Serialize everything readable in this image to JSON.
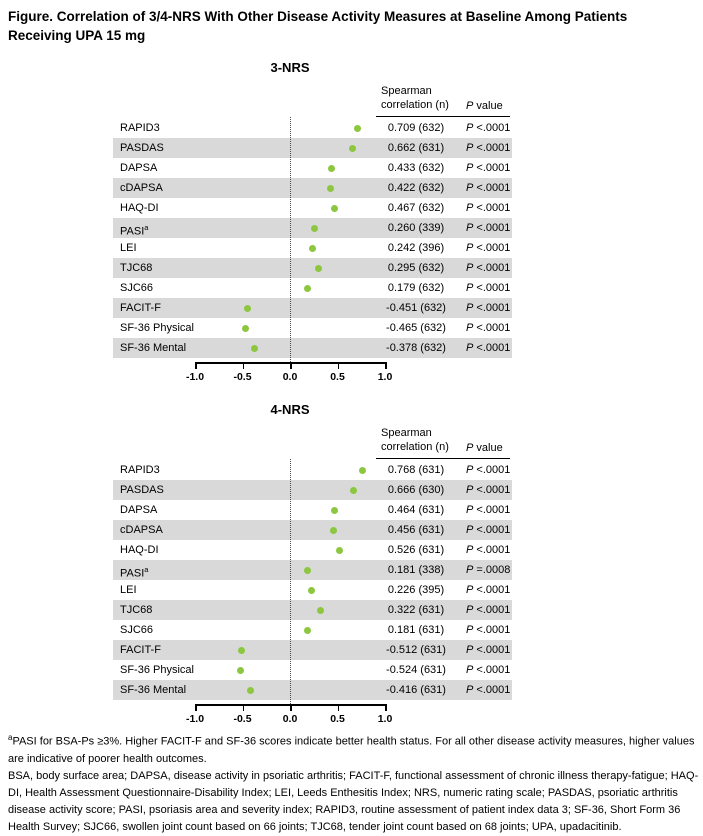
{
  "figure_title": "Figure. Correlation of 3/4-NRS With Other Disease Activity Measures at Baseline Among Patients\nReceiving UPA 15 mg",
  "table_header": {
    "col1": "Spearman\ncorrelation (n)",
    "p_symbol": "P",
    "p_word": "value"
  },
  "colors": {
    "dot": "#8DC63F",
    "band": "#D9D9D9"
  },
  "chart_data": [
    {
      "type": "scatter",
      "title": "3-NRS",
      "xlim": [
        -1,
        1
      ],
      "x_ticks": [
        {
          "label": "-1.0",
          "value": -1.0
        },
        {
          "label": "-0.5",
          "value": -0.5
        },
        {
          "label": "0.0",
          "value": 0.0
        },
        {
          "label": "0.5",
          "value": 0.5
        },
        {
          "label": "1.0",
          "value": 1.0
        }
      ],
      "rows": [
        {
          "label": "RAPID3",
          "sup": "",
          "value": 0.709,
          "n": 632,
          "p": "<.0001"
        },
        {
          "label": "PASDAS",
          "sup": "",
          "value": 0.662,
          "n": 631,
          "p": "<.0001"
        },
        {
          "label": "DAPSA",
          "sup": "",
          "value": 0.433,
          "n": 632,
          "p": "<.0001"
        },
        {
          "label": "cDAPSA",
          "sup": "",
          "value": 0.422,
          "n": 632,
          "p": "<.0001"
        },
        {
          "label": "HAQ-DI",
          "sup": "",
          "value": 0.467,
          "n": 632,
          "p": "<.0001"
        },
        {
          "label": "PASI",
          "sup": "a",
          "value": 0.26,
          "n": 339,
          "p": "<.0001"
        },
        {
          "label": "LEI",
          "sup": "",
          "value": 0.242,
          "n": 396,
          "p": "<.0001"
        },
        {
          "label": "TJC68",
          "sup": "",
          "value": 0.295,
          "n": 632,
          "p": "<.0001"
        },
        {
          "label": "SJC66",
          "sup": "",
          "value": 0.179,
          "n": 632,
          "p": "<.0001"
        },
        {
          "label": "FACIT-F",
          "sup": "",
          "value": -0.451,
          "n": 632,
          "p": "<.0001"
        },
        {
          "label": "SF-36 Physical",
          "sup": "",
          "value": -0.465,
          "n": 632,
          "p": "<.0001"
        },
        {
          "label": "SF-36 Mental",
          "sup": "",
          "value": -0.378,
          "n": 632,
          "p": "<.0001"
        }
      ]
    },
    {
      "type": "scatter",
      "title": "4-NRS",
      "xlim": [
        -1,
        1
      ],
      "x_ticks": [
        {
          "label": "-1.0",
          "value": -1.0
        },
        {
          "label": "-0.5",
          "value": -0.5
        },
        {
          "label": "0.0",
          "value": 0.0
        },
        {
          "label": "0.5",
          "value": 0.5
        },
        {
          "label": "1.0",
          "value": 1.0
        }
      ],
      "rows": [
        {
          "label": "RAPID3",
          "sup": "",
          "value": 0.768,
          "n": 631,
          "p": "<.0001"
        },
        {
          "label": "PASDAS",
          "sup": "",
          "value": 0.666,
          "n": 630,
          "p": "<.0001"
        },
        {
          "label": "DAPSA",
          "sup": "",
          "value": 0.464,
          "n": 631,
          "p": "<.0001"
        },
        {
          "label": "cDAPSA",
          "sup": "",
          "value": 0.456,
          "n": 631,
          "p": "<.0001"
        },
        {
          "label": "HAQ-DI",
          "sup": "",
          "value": 0.526,
          "n": 631,
          "p": "<.0001"
        },
        {
          "label": "PASI",
          "sup": "a",
          "value": 0.181,
          "n": 338,
          "p": "=.0008"
        },
        {
          "label": "LEI",
          "sup": "",
          "value": 0.226,
          "n": 395,
          "p": "<.0001"
        },
        {
          "label": "TJC68",
          "sup": "",
          "value": 0.322,
          "n": 631,
          "p": "<.0001"
        },
        {
          "label": "SJC66",
          "sup": "",
          "value": 0.181,
          "n": 631,
          "p": "<.0001"
        },
        {
          "label": "FACIT-F",
          "sup": "",
          "value": -0.512,
          "n": 631,
          "p": "<.0001"
        },
        {
          "label": "SF-36 Physical",
          "sup": "",
          "value": -0.524,
          "n": 631,
          "p": "<.0001"
        },
        {
          "label": "SF-36 Mental",
          "sup": "",
          "value": -0.416,
          "n": 631,
          "p": "<.0001"
        }
      ]
    }
  ],
  "footnotes": {
    "note_a_sup": "a",
    "note_a": "PASI for BSA-Ps ≥3%. Higher FACIT-F and SF-36 scores indicate better health status. For all other disease activity measures, higher values are indicative of poorer health outcomes.",
    "abbreviations": "BSA, body surface area; DAPSA, disease activity in psoriatic arthritis; FACIT-F, functional assessment of chronic illness therapy-fatigue; HAQ-DI, Health Assessment Questionnaire-Disability Index; LEI, Leeds Enthesitis Index; NRS, numeric rating scale; PASDAS, psoriatic arthritis disease activity score; PASI, psoriasis area and severity index; RAPID3, routine assessment of patient index data 3; SF-36, Short Form 36 Health Survey; SJC66, swollen joint count based on 66 joints; TJC68, tender joint count based on 68 joints; UPA, upadacitinib."
  }
}
